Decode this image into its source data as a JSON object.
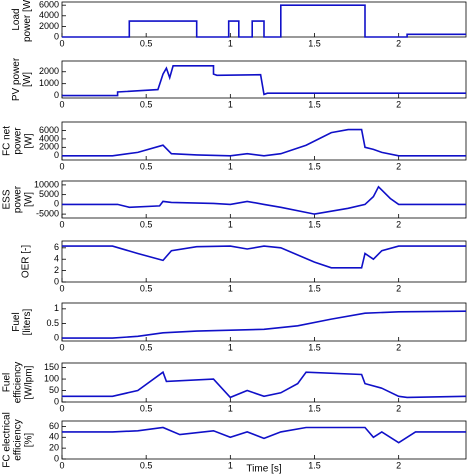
{
  "chart_data": [
    {
      "type": "line",
      "ylabel": [
        "Load",
        "power [W]"
      ],
      "xlim": [
        0,
        2.4
      ],
      "xticks": [
        0,
        0.5,
        1,
        1.5,
        2
      ],
      "ylim": [
        0,
        6600
      ],
      "yticks": [
        0,
        2000,
        4000,
        6000
      ],
      "series": [
        {
          "color": "#1010c8",
          "x": [
            0,
            0.4,
            0.4,
            0.8,
            0.8,
            0.99,
            0.99,
            1.05,
            1.05,
            1.13,
            1.13,
            1.2,
            1.2,
            1.3,
            1.3,
            1.8,
            1.8,
            2.05,
            2.05,
            2.4
          ],
          "values": [
            0,
            0,
            3000,
            3000,
            0,
            0,
            3000,
            3000,
            0,
            0,
            3000,
            3000,
            0,
            0,
            6000,
            6000,
            0,
            0,
            500,
            500
          ]
        }
      ]
    },
    {
      "type": "line",
      "ylabel": [
        "PV power",
        "[W]"
      ],
      "xlim": [
        0,
        2.4
      ],
      "xticks": [
        0,
        0.5,
        1,
        1.5,
        2
      ],
      "ylim": [
        -200,
        2900
      ],
      "yticks": [
        0,
        1000,
        2000
      ],
      "series": [
        {
          "color": "#1010c8",
          "x": [
            0,
            0.33,
            0.33,
            0.57,
            0.6,
            0.62,
            0.64,
            0.66,
            0.9,
            0.9,
            0.92,
            1.18,
            1.2,
            1.22,
            2.4
          ],
          "values": [
            0,
            0,
            300,
            500,
            1800,
            2300,
            1500,
            2500,
            2500,
            1800,
            1700,
            1750,
            100,
            200,
            200
          ]
        }
      ]
    },
    {
      "type": "line",
      "ylabel": [
        "FC net",
        "power",
        "[W]"
      ],
      "xlim": [
        0,
        2.4
      ],
      "xticks": [
        0,
        0.5,
        1,
        1.5,
        2
      ],
      "ylim": [
        -1000,
        8000
      ],
      "yticks": [
        0,
        2000,
        4000,
        6000
      ],
      "series": [
        {
          "color": "#1010c8",
          "x": [
            0,
            0.3,
            0.45,
            0.6,
            0.65,
            0.8,
            1.0,
            1.1,
            1.2,
            1.3,
            1.45,
            1.6,
            1.7,
            1.78,
            1.8,
            1.85,
            1.9,
            2.0,
            2.4
          ],
          "values": [
            0,
            0,
            800,
            2500,
            500,
            200,
            0,
            500,
            0,
            500,
            2500,
            5500,
            6200,
            6200,
            2000,
            1500,
            800,
            0,
            0
          ]
        }
      ]
    },
    {
      "type": "line",
      "ylabel": [
        "ESS",
        "power",
        "[W]"
      ],
      "xlim": [
        0,
        2.4
      ],
      "xticks": [
        0,
        0.5,
        1,
        1.5,
        2
      ],
      "ylim": [
        -7000,
        12000
      ],
      "yticks": [
        -5000,
        0,
        5000,
        10000
      ],
      "series": [
        {
          "color": "#1010c8",
          "x": [
            0,
            0.33,
            0.4,
            0.58,
            0.6,
            0.65,
            0.9,
            1.0,
            1.1,
            1.2,
            1.3,
            1.5,
            1.7,
            1.8,
            1.85,
            1.88,
            1.95,
            2.0,
            2.4
          ],
          "values": [
            0,
            0,
            -1500,
            -800,
            1500,
            1000,
            500,
            0,
            1500,
            0,
            -1500,
            -5000,
            -2000,
            0,
            4000,
            9000,
            3000,
            0,
            0
          ]
        }
      ]
    },
    {
      "type": "line",
      "ylabel": [
        "OER [-]"
      ],
      "xlim": [
        0,
        2.4
      ],
      "xticks": [
        0,
        0.5,
        1,
        1.5,
        2
      ],
      "ylim": [
        0,
        7.2
      ],
      "yticks": [
        0,
        2,
        4,
        6
      ],
      "series": [
        {
          "color": "#1010c8",
          "x": [
            0,
            0.3,
            0.45,
            0.6,
            0.65,
            0.8,
            1.0,
            1.1,
            1.2,
            1.3,
            1.5,
            1.6,
            1.78,
            1.8,
            1.85,
            1.9,
            2.0,
            2.4
          ],
          "values": [
            6.3,
            6.3,
            5,
            3.8,
            5.5,
            6.2,
            6.3,
            5.8,
            6.3,
            6,
            3.5,
            2.5,
            2.5,
            5,
            4,
            5.5,
            6.3,
            6.3
          ]
        }
      ]
    },
    {
      "type": "line",
      "ylabel": [
        "Fuel",
        "[liters]"
      ],
      "xlim": [
        0,
        2.4
      ],
      "xticks": [
        0,
        0.5,
        1,
        1.5,
        2
      ],
      "ylim": [
        -0.1,
        1.2
      ],
      "yticks": [
        0,
        0.5,
        1
      ],
      "series": [
        {
          "color": "#1010c8",
          "x": [
            0,
            0.3,
            0.45,
            0.6,
            0.8,
            1.2,
            1.4,
            1.6,
            1.8,
            2.0,
            2.4
          ],
          "values": [
            0,
            0,
            0.06,
            0.18,
            0.24,
            0.3,
            0.42,
            0.65,
            0.85,
            0.9,
            0.92
          ]
        }
      ]
    },
    {
      "type": "line",
      "ylabel": [
        "Fuel",
        "efficiency",
        "[W/lpm]"
      ],
      "xlim": [
        0,
        2.4
      ],
      "xticks": [
        0,
        0.5,
        1,
        1.5,
        2
      ],
      "ylim": [
        0,
        170
      ],
      "yticks": [
        0,
        50,
        100,
        150
      ],
      "series": [
        {
          "color": "#1010c8",
          "x": [
            0,
            0.3,
            0.45,
            0.6,
            0.62,
            0.9,
            1.0,
            1.1,
            1.2,
            1.3,
            1.4,
            1.45,
            1.78,
            1.8,
            1.9,
            2.0,
            2.05,
            2.4
          ],
          "values": [
            25,
            25,
            50,
            130,
            90,
            100,
            20,
            50,
            25,
            40,
            80,
            130,
            120,
            80,
            60,
            25,
            20,
            25
          ]
        }
      ]
    },
    {
      "type": "line",
      "ylabel": [
        "FC electrical",
        "efficiency",
        "[%]"
      ],
      "xlim": [
        0,
        2.4
      ],
      "xticks": [
        0,
        0.5,
        1,
        1.5,
        2
      ],
      "ylim": [
        0,
        70
      ],
      "yticks": [
        0,
        20,
        40,
        60
      ],
      "xlabel": "Time [s]",
      "series": [
        {
          "color": "#1010c8",
          "x": [
            0,
            0.3,
            0.45,
            0.6,
            0.7,
            0.9,
            1.0,
            1.1,
            1.2,
            1.3,
            1.45,
            1.8,
            1.85,
            1.9,
            2.0,
            2.1,
            2.4
          ],
          "values": [
            50,
            50,
            52,
            58,
            45,
            52,
            40,
            50,
            38,
            50,
            58,
            58,
            40,
            50,
            30,
            50,
            50
          ]
        }
      ]
    }
  ]
}
